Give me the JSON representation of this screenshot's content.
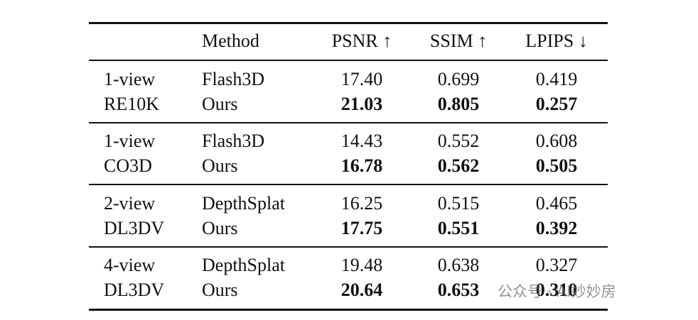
{
  "table": {
    "header": [
      "Method",
      "PSNR ↑",
      "SSIM ↑",
      "LPIPS ↓"
    ],
    "groups": [
      {
        "setting": [
          "1-view",
          "RE10K"
        ],
        "rows": [
          {
            "cells": [
              "Flash3D",
              "17.40",
              "0.699",
              "0.419"
            ],
            "bold": false
          },
          {
            "cells": [
              "Ours",
              "21.03",
              "0.805",
              "0.257"
            ],
            "bold": true
          }
        ]
      },
      {
        "setting": [
          "1-view",
          "CO3D"
        ],
        "rows": [
          {
            "cells": [
              "Flash3D",
              "14.43",
              "0.552",
              "0.608"
            ],
            "bold": false
          },
          {
            "cells": [
              "Ours",
              "16.78",
              "0.562",
              "0.505"
            ],
            "bold": true
          }
        ]
      },
      {
        "setting": [
          "2-view",
          "DL3DV"
        ],
        "rows": [
          {
            "cells": [
              "DepthSplat",
              "16.25",
              "0.515",
              "0.465"
            ],
            "bold": false
          },
          {
            "cells": [
              "Ours",
              "17.75",
              "0.551",
              "0.392"
            ],
            "bold": true
          }
        ]
      },
      {
        "setting": [
          "4-view",
          "DL3DV"
        ],
        "rows": [
          {
            "cells": [
              "DepthSplat",
              "19.48",
              "0.638",
              "0.327"
            ],
            "bold": false
          },
          {
            "cells": [
              "Ours",
              "20.64",
              "0.653",
              "0.310"
            ],
            "bold": true
          }
        ]
      }
    ]
  },
  "watermark": "公众号 · AI妙妙房"
}
